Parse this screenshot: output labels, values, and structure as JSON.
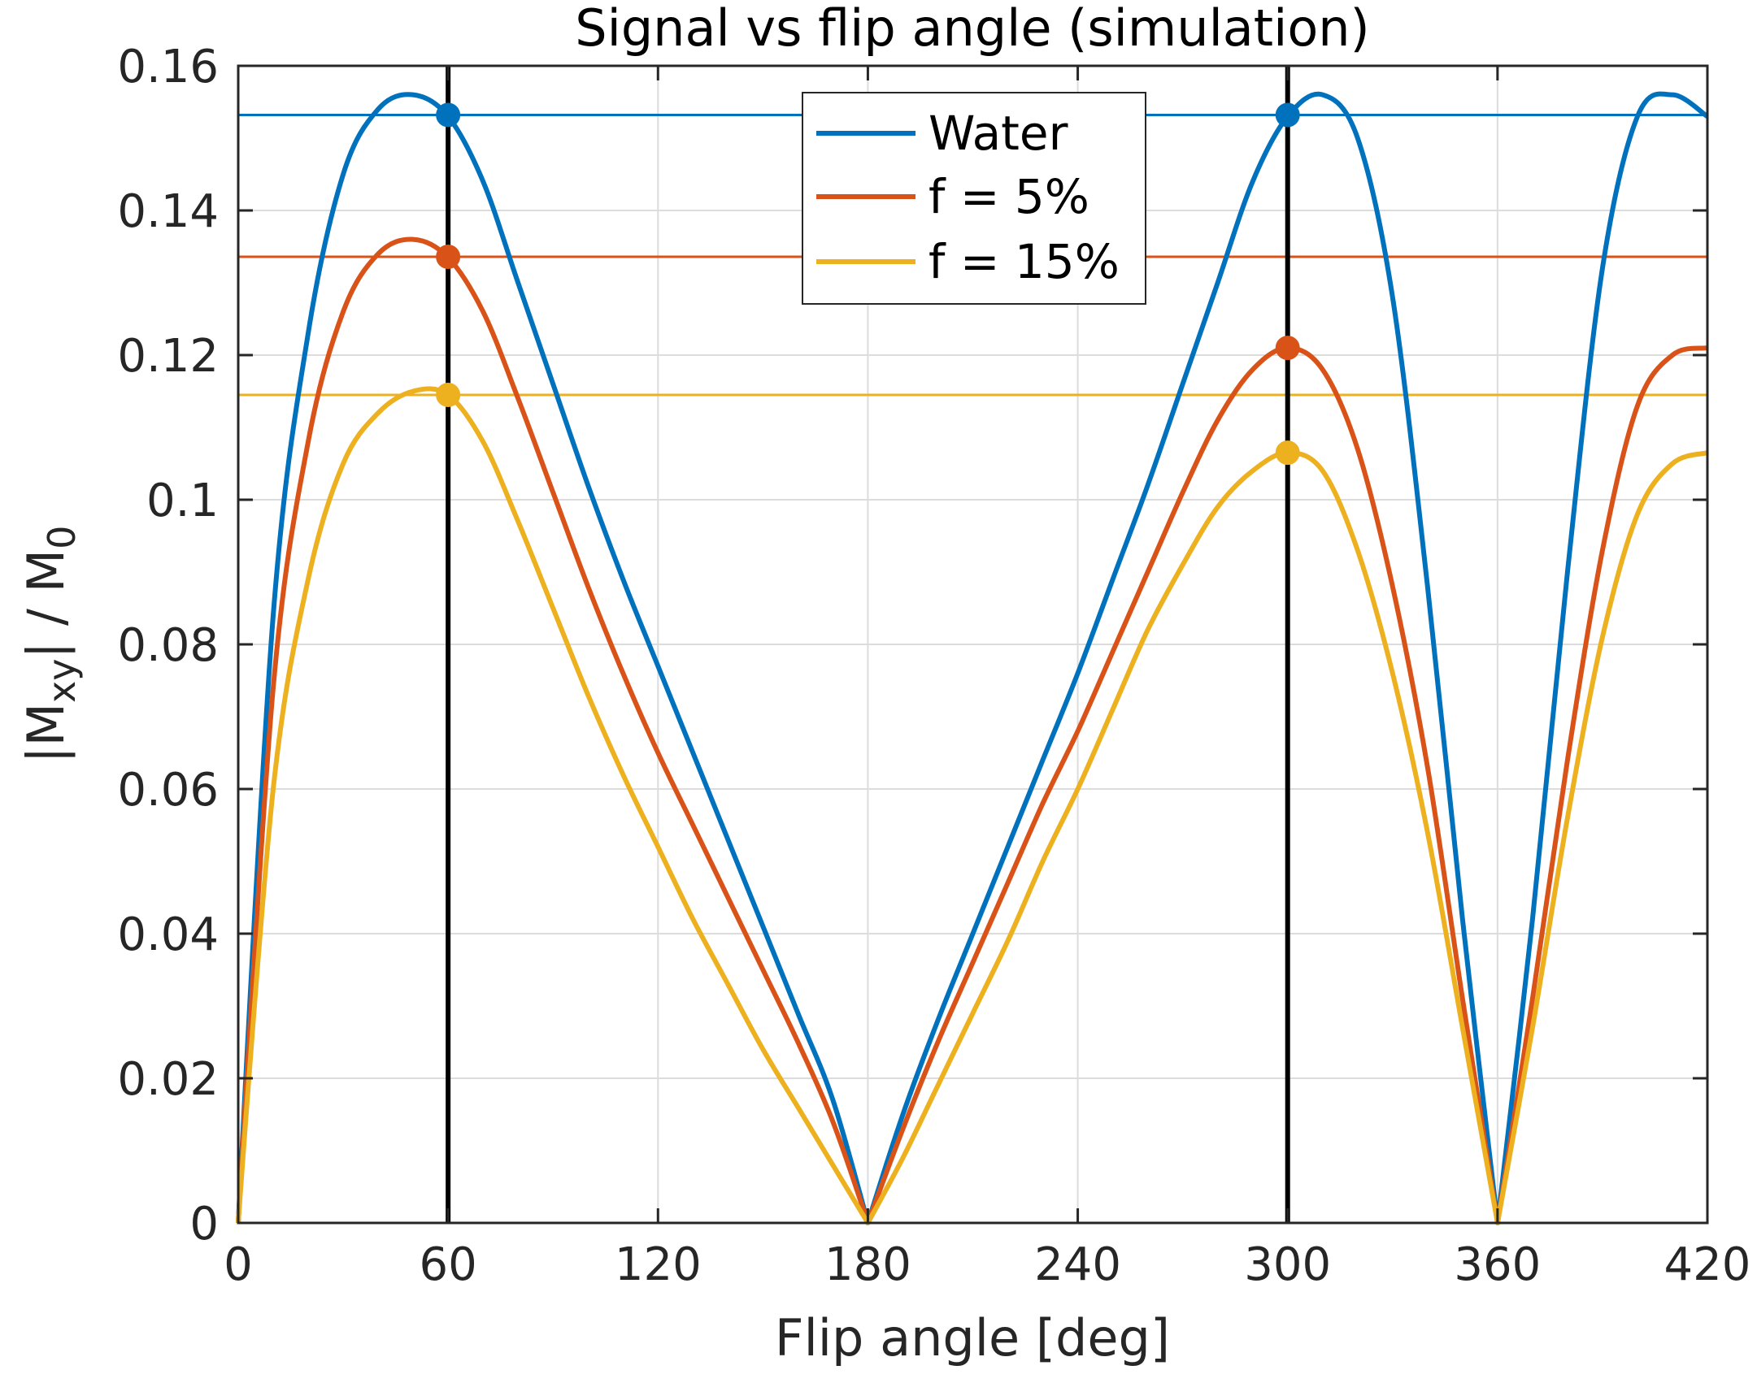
{
  "chart_data": {
    "type": "line",
    "title": "Signal vs flip angle (simulation)",
    "xlabel": "Flip angle [deg]",
    "ylabel": {
      "prefix": "|M",
      "sub1": "xy",
      "mid": "| / M",
      "sub2": "0"
    },
    "xlim": [
      0,
      420
    ],
    "ylim": [
      0,
      0.16
    ],
    "xticks": [
      0,
      60,
      120,
      180,
      240,
      300,
      360,
      420
    ],
    "xtick_labels": [
      "0",
      "60",
      "120",
      "180",
      "240",
      "300",
      "360",
      "420"
    ],
    "yticks": [
      0,
      0.02,
      0.04,
      0.06,
      0.08,
      0.1,
      0.12,
      0.14,
      0.16
    ],
    "ytick_labels": [
      "0",
      "0.02",
      "0.04",
      "0.06",
      "0.08",
      "0.1",
      "0.12",
      "0.14",
      "0.16"
    ],
    "grid": true,
    "legend_position": "top-center",
    "vertical_lines": [
      60,
      300
    ],
    "x": [
      0,
      10,
      20,
      30,
      40,
      50,
      60,
      70,
      80,
      90,
      100,
      110,
      120,
      130,
      140,
      150,
      160,
      170,
      180,
      190,
      200,
      210,
      220,
      230,
      240,
      250,
      260,
      270,
      280,
      290,
      300,
      310,
      320,
      330,
      340,
      350,
      360,
      370,
      380,
      390,
      400,
      410,
      420
    ],
    "series": [
      {
        "name": "Water",
        "color": "#0072BD",
        "values": [
          0,
          0.084,
          0.123,
          0.145,
          0.154,
          0.156,
          0.153,
          0.144,
          0.13,
          0.116,
          0.102,
          0.089,
          0.077,
          0.065,
          0.053,
          0.041,
          0.029,
          0.017,
          0,
          0.015,
          0.028,
          0.04,
          0.052,
          0.064,
          0.076,
          0.089,
          0.102,
          0.116,
          0.13,
          0.144,
          0.153,
          0.156,
          0.15,
          0.128,
          0.088,
          0.042,
          0,
          0.042,
          0.09,
          0.132,
          0.153,
          0.156,
          0.153
        ],
        "reference_level": 0.1532,
        "markers": [
          [
            60,
            0.1532
          ],
          [
            300,
            0.1532
          ]
        ]
      },
      {
        "name": "f = 5%",
        "color": "#D95319",
        "values": [
          0,
          0.074,
          0.108,
          0.126,
          0.134,
          0.136,
          0.1335,
          0.126,
          0.114,
          0.101,
          0.088,
          0.076,
          0.065,
          0.055,
          0.045,
          0.035,
          0.025,
          0.014,
          0,
          0.013,
          0.025,
          0.036,
          0.047,
          0.058,
          0.068,
          0.079,
          0.09,
          0.101,
          0.111,
          0.118,
          0.121,
          0.118,
          0.107,
          0.088,
          0.063,
          0.031,
          0,
          0.031,
          0.064,
          0.093,
          0.113,
          0.12,
          0.121
        ],
        "reference_level": 0.1336,
        "markers": [
          [
            60,
            0.1336
          ],
          [
            300,
            0.121
          ]
        ]
      },
      {
        "name": "f = 15%",
        "color": "#EDB120",
        "values": [
          0,
          0.06,
          0.089,
          0.105,
          0.112,
          0.115,
          0.1145,
          0.108,
          0.097,
          0.085,
          0.073,
          0.062,
          0.052,
          0.042,
          0.033,
          0.024,
          0.016,
          0.008,
          0,
          0.009,
          0.019,
          0.029,
          0.039,
          0.05,
          0.06,
          0.071,
          0.082,
          0.091,
          0.099,
          0.104,
          0.1065,
          0.104,
          0.093,
          0.076,
          0.054,
          0.027,
          0,
          0.027,
          0.056,
          0.081,
          0.098,
          0.105,
          0.1065
        ],
        "reference_level": 0.1145,
        "markers": [
          [
            60,
            0.1145
          ],
          [
            300,
            0.1065
          ]
        ]
      }
    ]
  }
}
